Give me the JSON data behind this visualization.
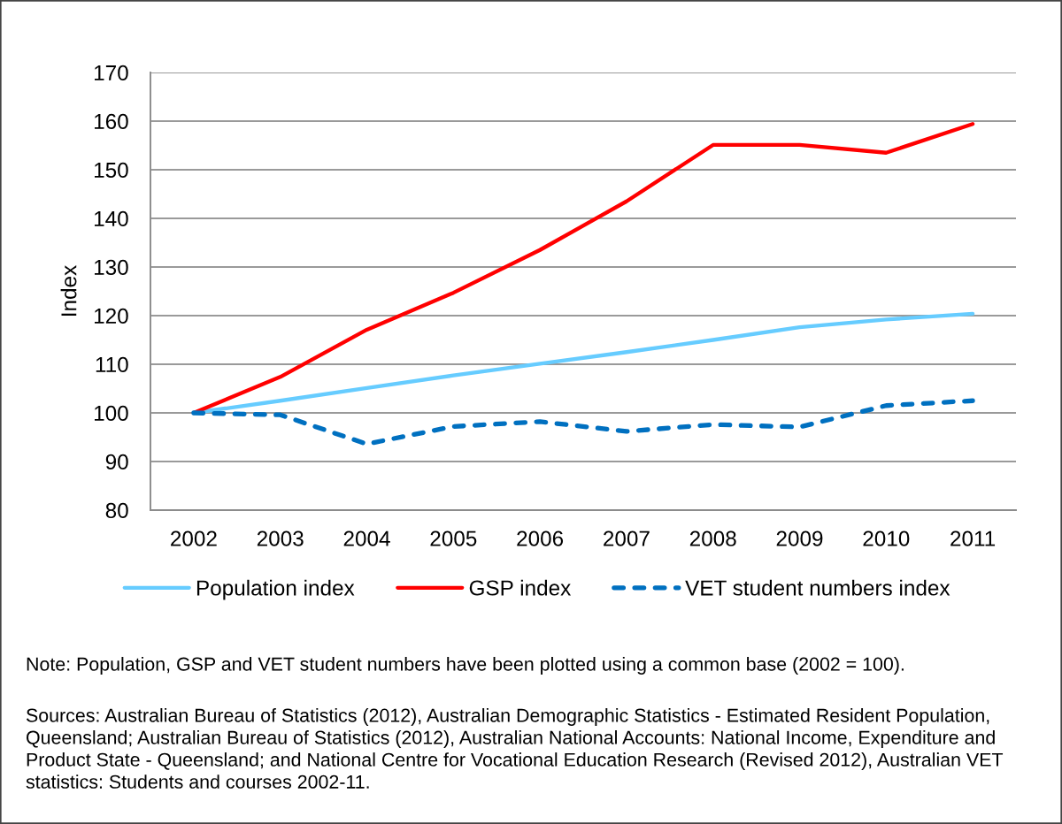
{
  "chart_data": {
    "type": "line",
    "ylabel": "Index",
    "categories": [
      "2002",
      "2003",
      "2004",
      "2005",
      "2006",
      "2007",
      "2008",
      "2009",
      "2010",
      "2011"
    ],
    "series": [
      {
        "name": "Population index",
        "color": "#66ccff",
        "values": [
          100,
          102.5,
          105.1,
          107.7,
          110.1,
          112.5,
          115.0,
          117.6,
          119.2,
          120.4
        ]
      },
      {
        "name": "GSP index",
        "color": "#ff0000",
        "values": [
          100,
          107.4,
          117.1,
          124.7,
          133.5,
          143.5,
          155.1,
          155.1,
          153.5,
          159.4
        ]
      },
      {
        "name": "VET student numbers index",
        "color": "#0070c0",
        "line_style": "dashed",
        "values": [
          100,
          99.6,
          93.6,
          97.2,
          98.2,
          96.2,
          97.6,
          97.1,
          101.5,
          102.5
        ]
      }
    ],
    "ylim": [
      80,
      170
    ],
    "yticks": [
      80,
      90,
      100,
      110,
      120,
      130,
      140,
      150,
      160,
      170
    ],
    "grid": "y",
    "legend": "bottom",
    "line_style": "solid",
    "annotations": [
      "Note: Population, GSP and VET student numbers have been plotted using a common base (2002 = 100).",
      "Sources: Australian Bureau of Statistics (2012), Australian Demographic Statistics - Estimated Resident Population, Queensland; Australian Bureau of Statistics (2012), Australian National Accounts: National Income, Expenditure and Product State - Queensland; and National Centre for Vocational Education Research (Revised 2012), Australian VET statistics: Students and courses 2002-11."
    ]
  }
}
